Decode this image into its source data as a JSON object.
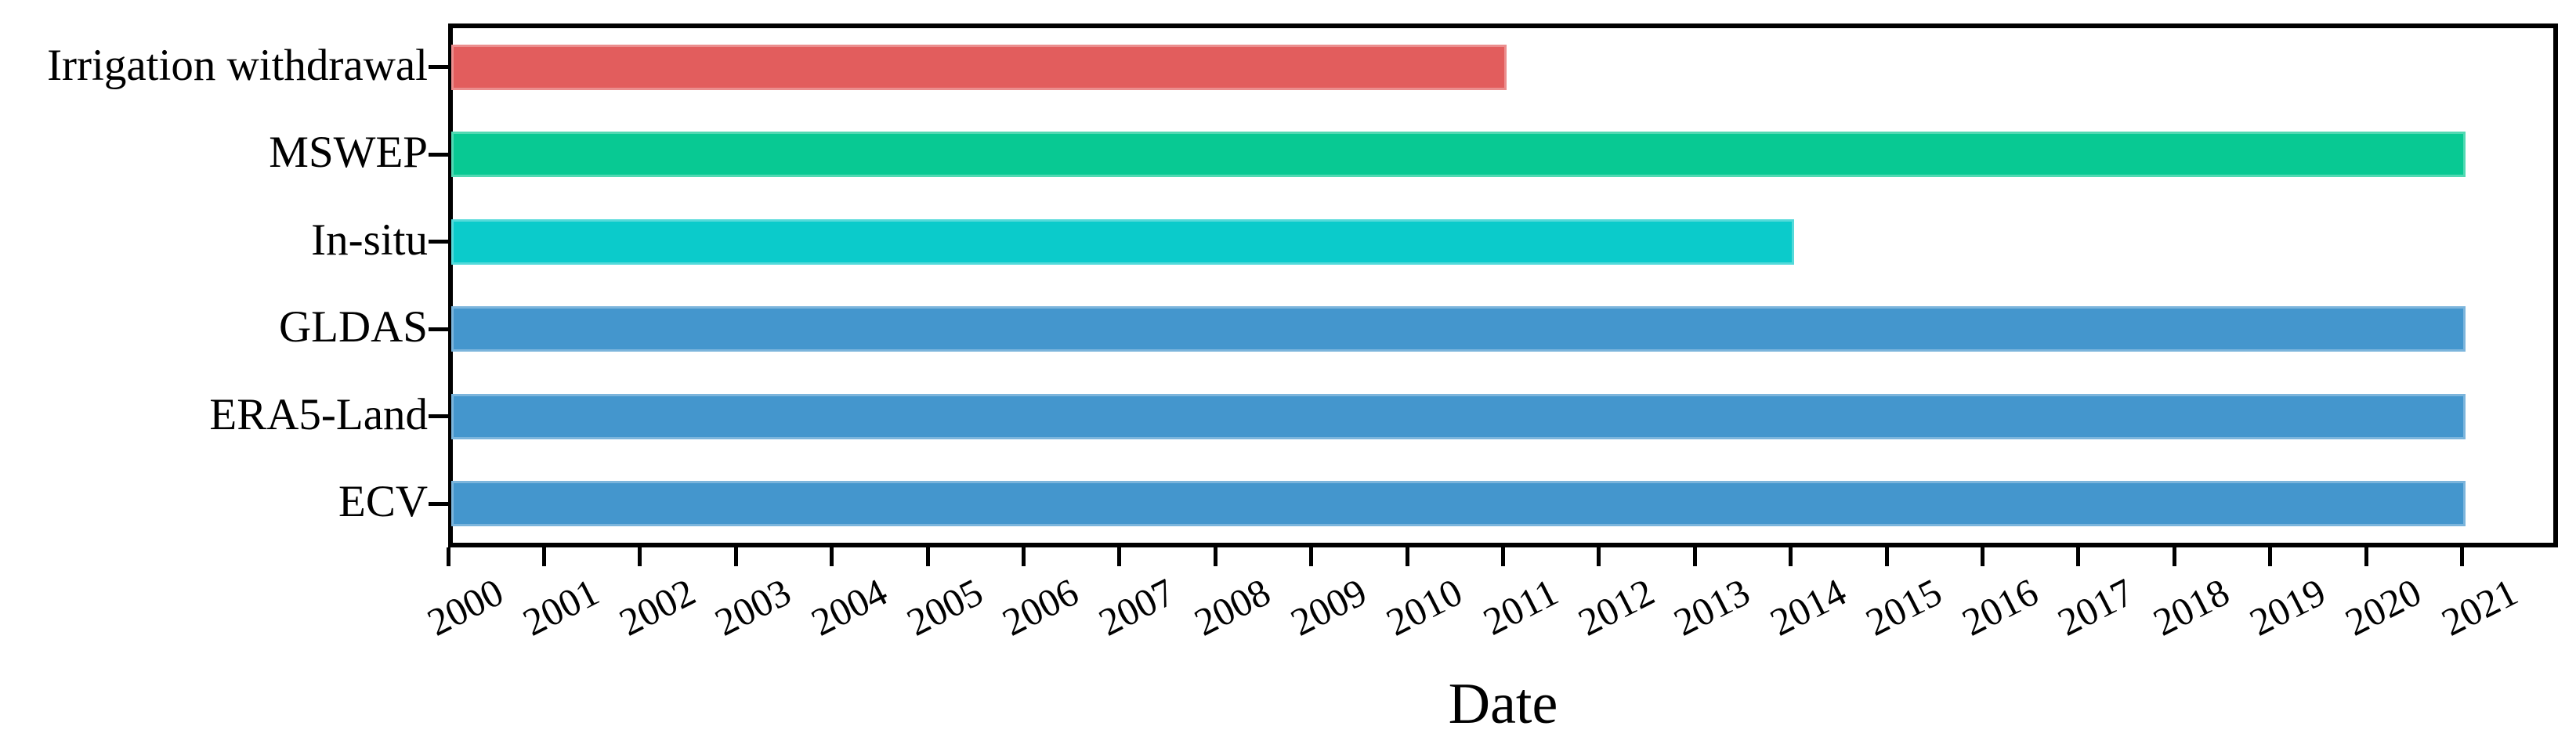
{
  "chart_data": {
    "type": "bar",
    "orientation": "horizontal",
    "title": "",
    "xlabel": "Date",
    "ylabel": "",
    "xlim": [
      2000,
      2022
    ],
    "x_ticks": [
      2000,
      2001,
      2002,
      2003,
      2004,
      2005,
      2006,
      2007,
      2008,
      2009,
      2010,
      2011,
      2012,
      2013,
      2014,
      2015,
      2016,
      2017,
      2018,
      2019,
      2020,
      2021
    ],
    "grid": false,
    "legend": "none",
    "categories": [
      "Irrigation withdrawal",
      "MSWEP",
      "In-situ",
      "GLDAS",
      "ERA5-Land",
      "ECV"
    ],
    "bars": [
      {
        "label": "Irrigation withdrawal",
        "start": 2000,
        "end": 2011,
        "color": "#E25D5D"
      },
      {
        "label": "MSWEP",
        "start": 2000,
        "end": 2021,
        "color": "#08C993"
      },
      {
        "label": "In-situ",
        "start": 2000,
        "end": 2014,
        "color": "#0BCBCB"
      },
      {
        "label": "GLDAS",
        "start": 2000,
        "end": 2021,
        "color": "#4496CD"
      },
      {
        "label": "ERA5-Land",
        "start": 2000,
        "end": 2021,
        "color": "#4496CD"
      },
      {
        "label": "ECV",
        "start": 2000,
        "end": 2021,
        "color": "#4496CD"
      }
    ],
    "axis_color": "#000000"
  }
}
